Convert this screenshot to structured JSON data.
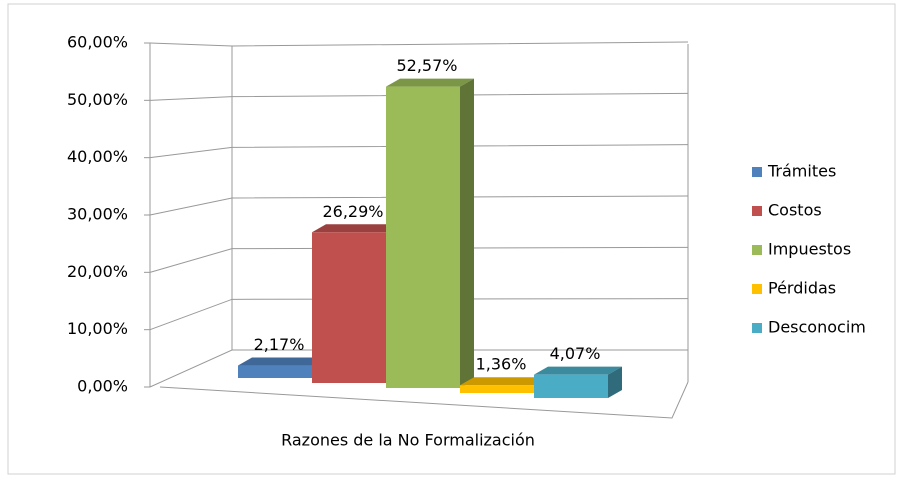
{
  "chart_data": {
    "type": "bar3d",
    "xlabel": "Razones de la No Formalización",
    "categories": [
      null
    ],
    "series": [
      {
        "name": "Trámites",
        "color": "#4f81bd",
        "values": [
          2.17
        ],
        "value_labels": [
          "2,17%"
        ]
      },
      {
        "name": "Costos",
        "color": "#c0504d",
        "values": [
          26.29
        ],
        "value_labels": [
          "26,29%"
        ]
      },
      {
        "name": "Impuestos",
        "color": "#9bbb59",
        "values": [
          52.57
        ],
        "value_labels": [
          "52,57%"
        ]
      },
      {
        "name": "Pérdidas",
        "color": "#ffc000",
        "values": [
          1.36
        ],
        "value_labels": [
          "1,36%"
        ]
      },
      {
        "name": "Desconocim",
        "color": "#4bacc6",
        "values": [
          4.07
        ],
        "value_labels": [
          "4,07%"
        ]
      }
    ],
    "ylim": [
      0,
      60
    ],
    "yticks": [
      {
        "value": 0,
        "label": "0,00%"
      },
      {
        "value": 10,
        "label": "10,00%"
      },
      {
        "value": 20,
        "label": "20,00%"
      },
      {
        "value": 30,
        "label": "30,00%"
      },
      {
        "value": 40,
        "label": "40,00%"
      },
      {
        "value": 50,
        "label": "50,00%"
      },
      {
        "value": 60,
        "label": "60,00%"
      }
    ],
    "grid": true,
    "legend": "right"
  }
}
